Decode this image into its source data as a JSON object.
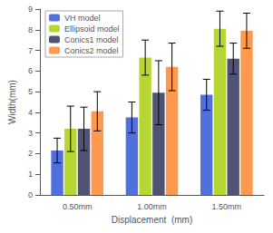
{
  "chart_data": {
    "type": "bar",
    "categories": [
      "0.50mm",
      "1.00mm",
      "1.50mm"
    ],
    "series": [
      {
        "name": "VH model",
        "values": [
          2.15,
          3.75,
          4.85
        ],
        "errors": [
          0.6,
          0.75,
          0.75
        ]
      },
      {
        "name": "Ellipsoid model",
        "values": [
          3.2,
          6.65,
          8.05
        ],
        "errors": [
          1.1,
          0.85,
          0.85
        ]
      },
      {
        "name": "Conics1 model",
        "values": [
          3.2,
          4.95,
          6.6
        ],
        "errors": [
          1.05,
          1.55,
          0.75
        ]
      },
      {
        "name": "Conics2 model",
        "values": [
          4.05,
          6.2,
          7.95
        ],
        "errors": [
          0.95,
          1.15,
          0.85
        ]
      }
    ],
    "xlabel": "Displacement  (mm)",
    "ylabel": "Width(mm)",
    "ylim": [
      0,
      9
    ],
    "yticks": [
      0,
      1,
      2,
      3,
      4,
      5,
      6,
      7,
      8,
      9
    ],
    "legend": "upper left",
    "grid": false
  }
}
